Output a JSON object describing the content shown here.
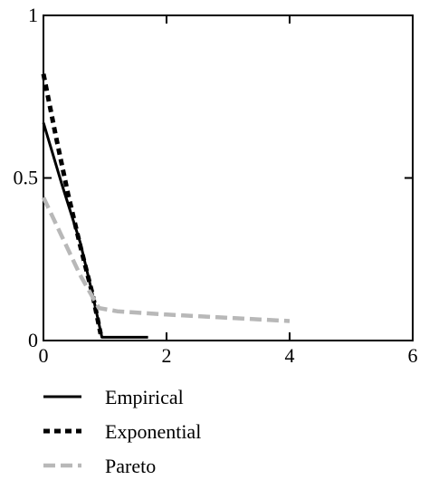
{
  "chart_data": {
    "type": "line",
    "title": "",
    "xlabel": "",
    "ylabel": "",
    "xlim": [
      0,
      6
    ],
    "ylim": [
      0,
      1
    ],
    "x_ticks": [
      0,
      2,
      4,
      6
    ],
    "x_tick_labels": [
      "0",
      "2",
      "4",
      "6"
    ],
    "y_ticks": [
      0,
      0.5,
      1
    ],
    "y_tick_labels": [
      "0",
      "0.5",
      "1"
    ],
    "grid": false,
    "legend_position": "bottom-left, below plot",
    "series": [
      {
        "name": "Empirical",
        "style": "solid",
        "color": "#000000",
        "x": [
          0,
          0.3,
          0.6,
          0.8,
          0.95,
          1.2,
          1.7
        ],
        "y": [
          0.67,
          0.48,
          0.3,
          0.14,
          0.01,
          0.01,
          0.01
        ]
      },
      {
        "name": "Exponential",
        "style": "dotted",
        "color": "#000000",
        "x": [
          0,
          0.2,
          0.4,
          0.6,
          0.8,
          0.93
        ],
        "y": [
          0.82,
          0.63,
          0.45,
          0.29,
          0.14,
          0.02
        ]
      },
      {
        "name": "Pareto",
        "style": "dashed-light",
        "color": "#b8b8b8",
        "x": [
          0,
          0.3,
          0.6,
          0.9,
          1.2,
          2,
          3,
          4
        ],
        "y": [
          0.44,
          0.32,
          0.2,
          0.1,
          0.09,
          0.08,
          0.07,
          0.06
        ]
      }
    ]
  }
}
